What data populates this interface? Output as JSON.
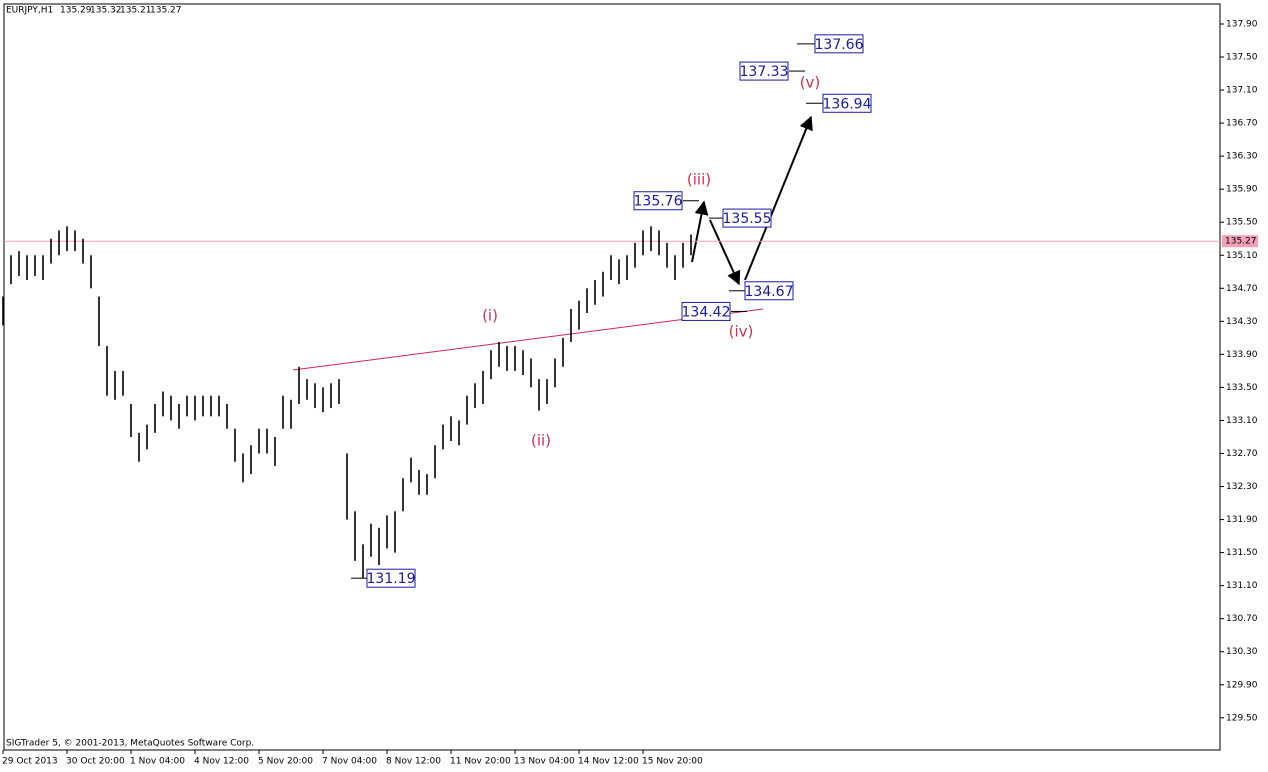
{
  "chart_data": {
    "type": "ohlc",
    "symbol": "EURJPY,H1",
    "quote": [
      135.29,
      135.32,
      135.21,
      135.27
    ],
    "footer": "SIGTrader 5, © 2001-2013, MetaQuotes Software Corp.",
    "bar_color": "#000000",
    "categories": [
      "29 Oct 2013",
      null,
      null,
      null,
      null,
      null,
      null,
      null,
      "30 Oct 20:00",
      null,
      null,
      null,
      null,
      null,
      null,
      null,
      "1 Nov 04:00",
      null,
      null,
      null,
      null,
      null,
      null,
      null,
      "4 Nov 12:00",
      null,
      null,
      null,
      null,
      null,
      null,
      null,
      "5 Nov 20:00",
      null,
      null,
      null,
      null,
      null,
      null,
      null,
      "7 Nov 04:00",
      null,
      null,
      null,
      null,
      null,
      null,
      null,
      "8 Nov 12:00",
      null,
      null,
      null,
      null,
      null,
      null,
      null,
      "11 Nov 20:00",
      null,
      null,
      null,
      null,
      null,
      null,
      null,
      "13 Nov 04:00",
      null,
      null,
      null,
      null,
      null,
      null,
      null,
      "14 Nov 12:00",
      null,
      null,
      null,
      null,
      null,
      null,
      null,
      "15 Nov 20:00",
      null,
      null,
      null,
      null,
      null,
      null
    ],
    "high": [
      134.6,
      135.1,
      135.15,
      135.1,
      135.1,
      135.1,
      135.3,
      135.4,
      135.45,
      135.4,
      135.3,
      135.1,
      134.6,
      134.0,
      133.7,
      133.7,
      133.3,
      132.95,
      133.05,
      133.3,
      133.45,
      133.4,
      133.3,
      133.4,
      133.4,
      133.4,
      133.4,
      133.4,
      133.3,
      133.0,
      132.7,
      132.8,
      133.0,
      133.0,
      132.9,
      133.4,
      133.35,
      133.75,
      133.6,
      133.55,
      133.5,
      133.55,
      133.6,
      132.7,
      132.0,
      131.6,
      131.85,
      131.8,
      131.95,
      132.0,
      132.4,
      132.65,
      132.5,
      132.45,
      132.8,
      133.05,
      133.15,
      133.1,
      133.4,
      133.55,
      133.7,
      133.95,
      134.05,
      134.0,
      134.0,
      133.95,
      133.85,
      133.6,
      133.6,
      133.85,
      134.1,
      134.45,
      134.55,
      134.7,
      134.8,
      134.9,
      135.1,
      135.05,
      135.1,
      135.25,
      135.4,
      135.45,
      135.4,
      135.25,
      135.1,
      135.25,
      135.35
    ],
    "low": [
      134.25,
      134.75,
      134.85,
      134.8,
      134.85,
      134.8,
      135.0,
      135.1,
      135.15,
      135.15,
      135.0,
      134.7,
      134.0,
      133.4,
      133.35,
      133.4,
      132.9,
      132.6,
      132.75,
      132.95,
      133.15,
      133.1,
      133.0,
      133.15,
      133.1,
      133.15,
      133.15,
      133.15,
      133.0,
      132.6,
      132.35,
      132.45,
      132.7,
      132.7,
      132.55,
      133.0,
      133.0,
      133.3,
      133.35,
      133.25,
      133.2,
      133.25,
      133.3,
      131.9,
      131.4,
      131.19,
      131.45,
      131.35,
      131.55,
      131.5,
      132.0,
      132.35,
      132.2,
      132.2,
      132.4,
      132.75,
      132.85,
      132.8,
      133.05,
      133.25,
      133.3,
      133.6,
      133.75,
      133.7,
      133.7,
      133.65,
      133.5,
      133.22,
      133.3,
      133.5,
      133.75,
      134.05,
      134.2,
      134.4,
      134.5,
      134.6,
      134.8,
      134.75,
      134.8,
      134.95,
      135.1,
      135.15,
      135.1,
      134.95,
      134.8,
      134.95,
      135.1
    ],
    "ylim": [
      129.11,
      138.13
    ],
    "yticks": [
      {
        "value": 137.9,
        "label": "137.90"
      },
      {
        "value": 137.5,
        "label": "137.50"
      },
      {
        "value": 137.1,
        "label": "137.10"
      },
      {
        "value": 136.7,
        "label": "136.70"
      },
      {
        "value": 136.3,
        "label": "136.30"
      },
      {
        "value": 135.9,
        "label": "135.90"
      },
      {
        "value": 135.5,
        "label": "135.50"
      },
      {
        "value": 135.1,
        "label": "135.10"
      },
      {
        "value": 134.7,
        "label": "134.70"
      },
      {
        "value": 134.3,
        "label": "134.30"
      },
      {
        "value": 133.9,
        "label": "133.90"
      },
      {
        "value": 133.5,
        "label": "133.50"
      },
      {
        "value": 133.1,
        "label": "133.10"
      },
      {
        "value": 132.7,
        "label": "132.70"
      },
      {
        "value": 132.3,
        "label": "132.30"
      },
      {
        "value": 131.9,
        "label": "131.90"
      },
      {
        "value": 131.5,
        "label": "131.50"
      },
      {
        "value": 131.1,
        "label": "131.10"
      },
      {
        "value": 130.7,
        "label": "130.70"
      },
      {
        "value": 130.3,
        "label": "130.30"
      },
      {
        "value": 129.9,
        "label": "129.90"
      },
      {
        "value": 129.5,
        "label": "129.50"
      }
    ],
    "current_price": 135.27,
    "current_price_color": "#f4a0b8",
    "price_levels": [
      137.66,
      137.33,
      136.94,
      135.76,
      135.55,
      134.67,
      134.42,
      131.19
    ],
    "wave_labels": [
      "(i)",
      "(ii)",
      "(iii)",
      "(iv)",
      "(v)"
    ]
  }
}
